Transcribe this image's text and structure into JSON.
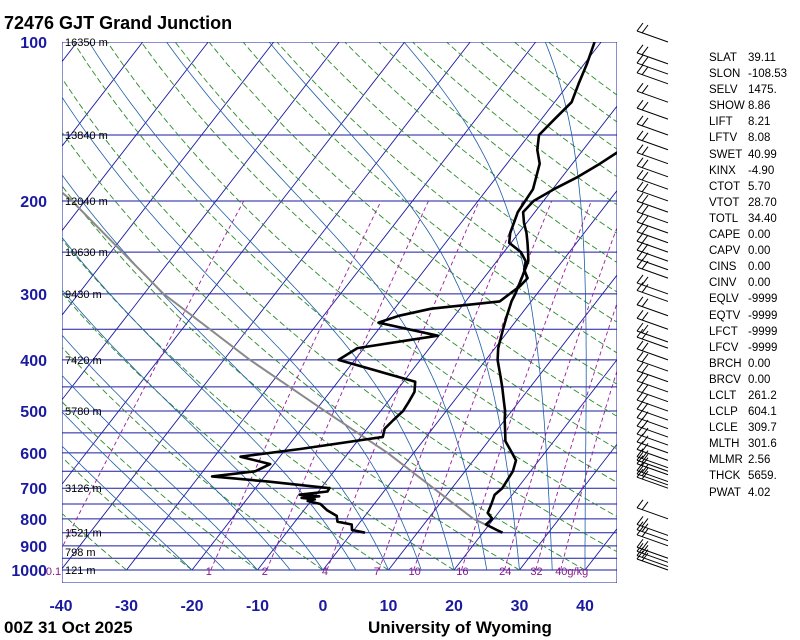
{
  "header": {
    "title": "72476 GJT Grand Junction"
  },
  "footer": {
    "time": "00Z 31 Oct 2025",
    "credit": "University of Wyoming"
  },
  "chart_data": {
    "type": "skew-t log-p sounding",
    "pressure_ticks": [
      100,
      200,
      300,
      400,
      500,
      600,
      700,
      800,
      900,
      1000
    ],
    "temperature_ticks": [
      -40,
      -30,
      -20,
      -10,
      0,
      10,
      20,
      30,
      40
    ],
    "height_labels": [
      {
        "p": 100,
        "label": "16350 m"
      },
      {
        "p": 150,
        "label": "13840 m"
      },
      {
        "p": 200,
        "label": "12040 m"
      },
      {
        "p": 250,
        "label": "10630 m"
      },
      {
        "p": 300,
        "label": "9430 m"
      },
      {
        "p": 400,
        "label": "7420 m"
      },
      {
        "p": 500,
        "label": "5780 m"
      },
      {
        "p": 700,
        "label": "3126 m"
      },
      {
        "p": 850,
        "label": "1521 m"
      },
      {
        "p": 925,
        "label": "798 m"
      },
      {
        "p": 1000,
        "label": "121 m"
      }
    ],
    "mixing_ratio_labels": [
      "0.1",
      "1",
      "2",
      "4",
      "7",
      "10",
      "16",
      "24",
      "32",
      "40g/kg"
    ],
    "mixing_ratio_values": [
      0.1,
      1,
      2,
      4,
      7,
      10,
      16,
      24,
      32,
      40
    ],
    "temperature_profile": [
      {
        "p": 850,
        "t": 23.0
      },
      {
        "p": 840,
        "t": 21.8
      },
      {
        "p": 820,
        "t": 19.5
      },
      {
        "p": 800,
        "t": 19.8
      },
      {
        "p": 780,
        "t": 18.4
      },
      {
        "p": 750,
        "t": 17.9
      },
      {
        "p": 720,
        "t": 17.3
      },
      {
        "p": 700,
        "t": 17.7
      },
      {
        "p": 650,
        "t": 17.3
      },
      {
        "p": 620,
        "t": 16.5
      },
      {
        "p": 600,
        "t": 15.0
      },
      {
        "p": 570,
        "t": 12.6
      },
      {
        "p": 550,
        "t": 11.6
      },
      {
        "p": 520,
        "t": 10.0
      },
      {
        "p": 500,
        "t": 9.0
      },
      {
        "p": 480,
        "t": 7.7
      },
      {
        "p": 450,
        "t": 5.7
      },
      {
        "p": 430,
        "t": 4.2
      },
      {
        "p": 400,
        "t": 1.8
      },
      {
        "p": 380,
        "t": 0.5
      },
      {
        "p": 350,
        "t": -1.0
      },
      {
        "p": 330,
        "t": -2.0
      },
      {
        "p": 310,
        "t": -3.0
      },
      {
        "p": 300,
        "t": -3.3
      },
      {
        "p": 280,
        "t": -4.2
      },
      {
        "p": 260,
        "t": -5.2
      },
      {
        "p": 250,
        "t": -6.3
      },
      {
        "p": 240,
        "t": -7.5
      },
      {
        "p": 230,
        "t": -8.8
      },
      {
        "p": 220,
        "t": -10.4
      },
      {
        "p": 210,
        "t": -11.8
      },
      {
        "p": 200,
        "t": -11.5
      },
      {
        "p": 190,
        "t": -9.8
      },
      {
        "p": 180,
        "t": -7.6
      },
      {
        "p": 170,
        "t": -5.8
      },
      {
        "p": 160,
        "t": -4.2
      },
      {
        "p": 150,
        "t": -2.6
      },
      {
        "p": 140,
        "t": -0.3
      },
      {
        "p": 130,
        "t": 1.5
      },
      {
        "p": 125,
        "t": 3.5
      },
      {
        "p": 120,
        "t": 5.2
      },
      {
        "p": 115,
        "t": 6.3
      },
      {
        "p": 110,
        "t": 8.2
      },
      {
        "p": 105,
        "t": 10.0
      },
      {
        "p": 100,
        "t": 11.3
      }
    ],
    "dewpoint_profile": [
      {
        "p": 850,
        "t": 2.0
      },
      {
        "p": 840,
        "t": -0.3
      },
      {
        "p": 820,
        "t": -1.0
      },
      {
        "p": 810,
        "t": -3.5
      },
      {
        "p": 790,
        "t": -4.3
      },
      {
        "p": 770,
        "t": -6.5
      },
      {
        "p": 750,
        "t": -8.2
      },
      {
        "p": 740,
        "t": -10.5
      },
      {
        "p": 735,
        "t": -9.6
      },
      {
        "p": 730,
        "t": -11.8
      },
      {
        "p": 725,
        "t": -9.3
      },
      {
        "p": 720,
        "t": -12.5
      },
      {
        "p": 710,
        "t": -8.6
      },
      {
        "p": 700,
        "t": -8.7
      },
      {
        "p": 680,
        "t": -18.8
      },
      {
        "p": 665,
        "t": -28.0
      },
      {
        "p": 650,
        "t": -22.0
      },
      {
        "p": 630,
        "t": -20.6
      },
      {
        "p": 610,
        "t": -26.0
      },
      {
        "p": 590,
        "t": -17.8
      },
      {
        "p": 560,
        "t": -6.6
      },
      {
        "p": 540,
        "t": -7.3
      },
      {
        "p": 520,
        "t": -7.0
      },
      {
        "p": 500,
        "t": -6.6
      },
      {
        "p": 480,
        "t": -6.8
      },
      {
        "p": 460,
        "t": -7.1
      },
      {
        "p": 440,
        "t": -8.2
      },
      {
        "p": 400,
        "t": -22.5
      },
      {
        "p": 380,
        "t": -21.0
      },
      {
        "p": 360,
        "t": -10.2
      },
      {
        "p": 340,
        "t": -20.8
      },
      {
        "p": 330,
        "t": -18.5
      },
      {
        "p": 320,
        "t": -14.4
      },
      {
        "p": 310,
        "t": -4.8
      },
      {
        "p": 290,
        "t": -3.5
      },
      {
        "p": 280,
        "t": -3.3
      },
      {
        "p": 270,
        "t": -4.8
      },
      {
        "p": 260,
        "t": -5.6
      },
      {
        "p": 250,
        "t": -7.4
      },
      {
        "p": 240,
        "t": -10.3
      },
      {
        "p": 230,
        "t": -11.3
      },
      {
        "p": 210,
        "t": -12.6
      },
      {
        "p": 190,
        "t": -13.0
      },
      {
        "p": 170,
        "t": -15.0
      },
      {
        "p": 160,
        "t": -17.0
      },
      {
        "p": 150,
        "t": -18.5
      },
      {
        "p": 140,
        "t": -18.0
      },
      {
        "p": 130,
        "t": -17.4
      },
      {
        "p": 120,
        "t": -18.5
      },
      {
        "p": 110,
        "t": -19.6
      },
      {
        "p": 100,
        "t": -21.0
      }
    ],
    "parcel_profile": [
      {
        "p": 850,
        "t": 23.0
      },
      {
        "p": 800,
        "t": 16.9
      },
      {
        "p": 700,
        "t": 7.2
      },
      {
        "p": 600,
        "t": -4.0
      },
      {
        "p": 500,
        "t": -18.5
      },
      {
        "p": 400,
        "t": -36.0
      },
      {
        "p": 300,
        "t": -57.0
      },
      {
        "p": 200,
        "t": -82.0
      },
      {
        "p": 100,
        "t": -129.0
      }
    ],
    "wind_barb_pressures": [
      1000,
      985,
      967,
      950,
      900,
      880,
      860,
      800,
      700,
      690,
      680,
      660,
      650,
      640,
      620,
      600,
      580,
      560,
      540,
      520,
      500,
      480,
      460,
      440,
      420,
      400,
      380,
      370,
      350,
      330,
      310,
      300,
      280,
      270,
      260,
      250,
      240,
      230,
      220,
      210,
      200,
      190,
      180,
      170,
      160,
      150,
      140,
      130,
      120,
      115,
      110,
      100
    ]
  },
  "indices": [
    {
      "name": "SLAT",
      "value": "39.11"
    },
    {
      "name": "SLON",
      "value": "-108.53"
    },
    {
      "name": "SELV",
      "value": "1475."
    },
    {
      "name": "SHOW",
      "value": "8.86"
    },
    {
      "name": "LIFT",
      "value": "8.21"
    },
    {
      "name": "LFTV",
      "value": "8.08"
    },
    {
      "name": "SWET",
      "value": "40.99"
    },
    {
      "name": "KINX",
      "value": "-4.90"
    },
    {
      "name": "CTOT",
      "value": "5.70"
    },
    {
      "name": "VTOT",
      "value": "28.70"
    },
    {
      "name": "TOTL",
      "value": "34.40"
    },
    {
      "name": "CAPE",
      "value": "0.00"
    },
    {
      "name": "CAPV",
      "value": "0.00"
    },
    {
      "name": "CINS",
      "value": "0.00"
    },
    {
      "name": "CINV",
      "value": "0.00"
    },
    {
      "name": "EQLV",
      "value": "-9999"
    },
    {
      "name": "EQTV",
      "value": "-9999"
    },
    {
      "name": "LFCT",
      "value": "-9999"
    },
    {
      "name": "LFCV",
      "value": "-9999"
    },
    {
      "name": "BRCH",
      "value": "0.00"
    },
    {
      "name": "BRCV",
      "value": "0.00"
    },
    {
      "name": "LCLT",
      "value": "261.2"
    },
    {
      "name": "LCLP",
      "value": "604.1"
    },
    {
      "name": "LCLE",
      "value": "309.7"
    },
    {
      "name": "MLTH",
      "value": "301.6"
    },
    {
      "name": "MLMR",
      "value": "2.56"
    },
    {
      "name": "THCK",
      "value": "5659."
    },
    {
      "name": "PWAT",
      "value": "4.02"
    }
  ]
}
